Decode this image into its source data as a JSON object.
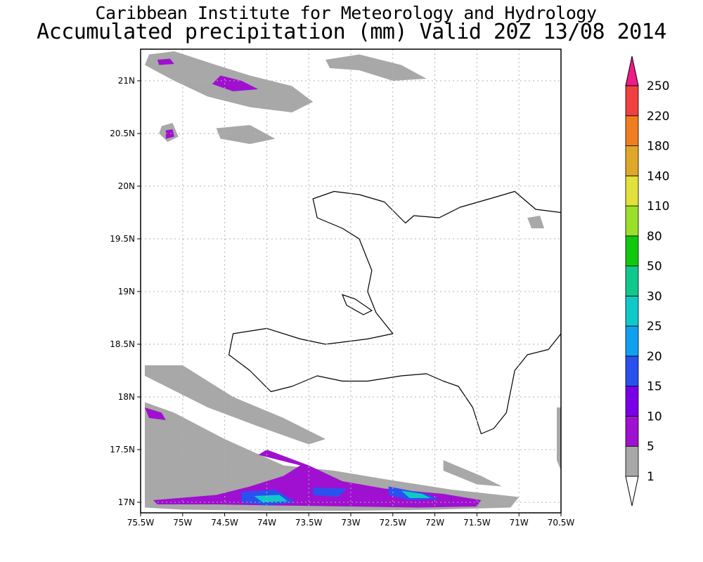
{
  "title_line1": "Caribbean Institute for Meteorology and Hydrology",
  "title_line2": "Accumulated precipitation (mm) Valid 20Z 13/08 2014",
  "map": {
    "lon_range": [
      -75.5,
      -70.5
    ],
    "lat_range": [
      16.9,
      21.3
    ],
    "grid": "dotted",
    "lon_ticks": [
      {
        "value": -75.5,
        "label": "75.5W"
      },
      {
        "value": -75,
        "label": "75W"
      },
      {
        "value": -74.5,
        "label": "74.5W"
      },
      {
        "value": -74,
        "label": "74W"
      },
      {
        "value": -73.5,
        "label": "73.5W"
      },
      {
        "value": -73,
        "label": "73W"
      },
      {
        "value": -72.5,
        "label": "72.5W"
      },
      {
        "value": -72,
        "label": "72W"
      },
      {
        "value": -71.5,
        "label": "71.5W"
      },
      {
        "value": -71,
        "label": "71W"
      },
      {
        "value": -70.5,
        "label": "70.5W"
      }
    ],
    "lat_ticks": [
      {
        "value": 17,
        "label": "17N"
      },
      {
        "value": 17.5,
        "label": "17.5N"
      },
      {
        "value": 18,
        "label": "18N"
      },
      {
        "value": 18.5,
        "label": "18.5N"
      },
      {
        "value": 19,
        "label": "19N"
      },
      {
        "value": 19.5,
        "label": "19.5N"
      },
      {
        "value": 20,
        "label": "20N"
      },
      {
        "value": 20.5,
        "label": "20.5N"
      },
      {
        "value": 21,
        "label": "21N"
      }
    ],
    "land_outline": [
      [
        -73.45,
        19.88
      ],
      [
        -73.2,
        19.95
      ],
      [
        -72.9,
        19.92
      ],
      [
        -72.6,
        19.85
      ],
      [
        -72.35,
        19.65
      ],
      [
        -72.25,
        19.72
      ],
      [
        -71.95,
        19.7
      ],
      [
        -71.7,
        19.8
      ],
      [
        -71.35,
        19.88
      ],
      [
        -71.05,
        19.95
      ],
      [
        -70.8,
        19.78
      ],
      [
        -70.5,
        19.75
      ],
      [
        -70.5,
        18.6
      ],
      [
        -70.65,
        18.45
      ],
      [
        -70.9,
        18.4
      ],
      [
        -71.05,
        18.25
      ],
      [
        -71.15,
        17.85
      ],
      [
        -71.3,
        17.7
      ],
      [
        -71.45,
        17.65
      ],
      [
        -71.55,
        17.9
      ],
      [
        -71.72,
        18.1
      ],
      [
        -71.9,
        18.15
      ],
      [
        -72.1,
        18.22
      ],
      [
        -72.4,
        18.2
      ],
      [
        -72.8,
        18.15
      ],
      [
        -73.1,
        18.15
      ],
      [
        -73.4,
        18.2
      ],
      [
        -73.7,
        18.1
      ],
      [
        -73.95,
        18.05
      ],
      [
        -74.2,
        18.25
      ],
      [
        -74.45,
        18.4
      ],
      [
        -74.4,
        18.6
      ],
      [
        -74.0,
        18.65
      ],
      [
        -73.6,
        18.55
      ],
      [
        -73.3,
        18.5
      ],
      [
        -72.8,
        18.55
      ],
      [
        -72.5,
        18.6
      ],
      [
        -72.7,
        18.8
      ],
      [
        -72.8,
        19.0
      ],
      [
        -72.75,
        19.2
      ],
      [
        -72.9,
        19.5
      ],
      [
        -73.1,
        19.6
      ],
      [
        -73.4,
        19.7
      ],
      [
        -73.45,
        19.88
      ]
    ],
    "gonave_outline": [
      [
        -73.1,
        18.97
      ],
      [
        -72.95,
        18.93
      ],
      [
        -72.75,
        18.82
      ],
      [
        -72.85,
        18.78
      ],
      [
        -73.05,
        18.87
      ],
      [
        -73.1,
        18.97
      ]
    ],
    "precip_areas": [
      {
        "band": "1",
        "pts": [
          [
            -75.4,
            21.25
          ],
          [
            -75.1,
            21.28
          ],
          [
            -74.6,
            21.15
          ],
          [
            -74.2,
            21.05
          ],
          [
            -73.7,
            20.95
          ],
          [
            -73.45,
            20.8
          ],
          [
            -73.7,
            20.7
          ],
          [
            -74.2,
            20.75
          ],
          [
            -74.7,
            20.85
          ],
          [
            -75.1,
            21.0
          ],
          [
            -75.45,
            21.15
          ]
        ]
      },
      {
        "band": "1",
        "pts": [
          [
            -73.3,
            21.2
          ],
          [
            -72.9,
            21.25
          ],
          [
            -72.4,
            21.15
          ],
          [
            -72.1,
            21.02
          ],
          [
            -72.5,
            21.0
          ],
          [
            -72.9,
            21.1
          ],
          [
            -73.25,
            21.12
          ]
        ]
      },
      {
        "band": "1",
        "pts": [
          [
            -75.25,
            20.57
          ],
          [
            -75.12,
            20.6
          ],
          [
            -75.05,
            20.47
          ],
          [
            -75.18,
            20.42
          ],
          [
            -75.28,
            20.5
          ]
        ]
      },
      {
        "band": "1",
        "pts": [
          [
            -74.6,
            20.55
          ],
          [
            -74.2,
            20.58
          ],
          [
            -73.9,
            20.45
          ],
          [
            -74.2,
            20.4
          ],
          [
            -74.55,
            20.45
          ]
        ]
      },
      {
        "band": "1",
        "pts": [
          [
            -70.9,
            19.7
          ],
          [
            -70.75,
            19.72
          ],
          [
            -70.7,
            19.6
          ],
          [
            -70.85,
            19.6
          ]
        ]
      },
      {
        "band": "1",
        "pts": [
          [
            -75.45,
            18.3
          ],
          [
            -75.0,
            18.3
          ],
          [
            -74.4,
            18.0
          ],
          [
            -73.8,
            17.8
          ],
          [
            -73.3,
            17.6
          ],
          [
            -73.5,
            17.55
          ],
          [
            -74.1,
            17.72
          ],
          [
            -74.7,
            17.9
          ],
          [
            -75.2,
            18.1
          ],
          [
            -75.45,
            18.2
          ]
        ]
      },
      {
        "band": "1",
        "pts": [
          [
            -75.45,
            17.95
          ],
          [
            -75.1,
            17.85
          ],
          [
            -74.5,
            17.6
          ],
          [
            -73.8,
            17.35
          ],
          [
            -73.2,
            17.3
          ],
          [
            -72.6,
            17.22
          ],
          [
            -71.8,
            17.12
          ],
          [
            -71.0,
            17.05
          ],
          [
            -71.1,
            16.95
          ],
          [
            -72.0,
            16.93
          ],
          [
            -73.0,
            16.92
          ],
          [
            -74.0,
            16.92
          ],
          [
            -75.0,
            16.93
          ],
          [
            -75.45,
            16.95
          ]
        ]
      },
      {
        "band": "1",
        "pts": [
          [
            -71.9,
            17.4
          ],
          [
            -71.45,
            17.25
          ],
          [
            -71.2,
            17.15
          ],
          [
            -71.5,
            17.17
          ],
          [
            -71.9,
            17.3
          ]
        ]
      },
      {
        "band": "1",
        "pts": [
          [
            -70.55,
            17.9
          ],
          [
            -70.5,
            17.9
          ],
          [
            -70.5,
            17.3
          ],
          [
            -70.55,
            17.4
          ]
        ]
      },
      {
        "band": "5",
        "pts": [
          [
            -74.55,
            21.05
          ],
          [
            -74.3,
            21.0
          ],
          [
            -74.1,
            20.92
          ],
          [
            -74.4,
            20.9
          ],
          [
            -74.65,
            20.97
          ]
        ]
      },
      {
        "band": "5",
        "pts": [
          [
            -75.2,
            20.53
          ],
          [
            -75.12,
            20.54
          ],
          [
            -75.1,
            20.47
          ],
          [
            -75.2,
            20.45
          ]
        ]
      },
      {
        "band": "5",
        "pts": [
          [
            -75.3,
            21.2
          ],
          [
            -75.15,
            21.21
          ],
          [
            -75.1,
            21.16
          ],
          [
            -75.28,
            21.15
          ]
        ]
      },
      {
        "band": "5",
        "pts": [
          [
            -75.45,
            17.9
          ],
          [
            -75.25,
            17.85
          ],
          [
            -75.2,
            17.78
          ],
          [
            -75.4,
            17.8
          ]
        ]
      },
      {
        "band": "5",
        "pts": [
          [
            -74.0,
            17.5
          ],
          [
            -73.5,
            17.35
          ],
          [
            -73.1,
            17.2
          ],
          [
            -72.6,
            17.13
          ],
          [
            -71.9,
            17.08
          ],
          [
            -71.45,
            17.02
          ],
          [
            -71.5,
            16.96
          ],
          [
            -72.2,
            16.95
          ],
          [
            -73.0,
            16.96
          ],
          [
            -73.9,
            16.97
          ],
          [
            -74.6,
            16.98
          ],
          [
            -75.3,
            16.98
          ],
          [
            -75.35,
            17.02
          ],
          [
            -74.6,
            17.07
          ],
          [
            -74.2,
            17.15
          ],
          [
            -73.8,
            17.25
          ],
          [
            -73.6,
            17.35
          ],
          [
            -74.1,
            17.45
          ]
        ]
      },
      {
        "band": "15",
        "pts": [
          [
            -74.3,
            17.1
          ],
          [
            -73.9,
            17.12
          ],
          [
            -73.65,
            17.0
          ],
          [
            -74.0,
            16.97
          ],
          [
            -74.3,
            17.0
          ]
        ]
      },
      {
        "band": "15",
        "pts": [
          [
            -73.45,
            17.14
          ],
          [
            -73.05,
            17.13
          ],
          [
            -73.15,
            17.05
          ],
          [
            -73.45,
            17.07
          ]
        ]
      },
      {
        "band": "15",
        "pts": [
          [
            -72.55,
            17.15
          ],
          [
            -72.1,
            17.08
          ],
          [
            -71.95,
            17.03
          ],
          [
            -72.3,
            17.02
          ],
          [
            -72.55,
            17.07
          ]
        ]
      },
      {
        "band": "25",
        "pts": [
          [
            -74.15,
            17.06
          ],
          [
            -73.85,
            17.07
          ],
          [
            -73.75,
            17.01
          ],
          [
            -74.05,
            17.0
          ]
        ]
      },
      {
        "band": "25",
        "pts": [
          [
            -72.4,
            17.11
          ],
          [
            -72.15,
            17.08
          ],
          [
            -72.05,
            17.04
          ],
          [
            -72.3,
            17.04
          ]
        ]
      }
    ]
  },
  "legend": {
    "thresholds": [
      "1",
      "5",
      "10",
      "15",
      "20",
      "25",
      "30",
      "50",
      "80",
      "110",
      "140",
      "180",
      "220",
      "250"
    ],
    "colors": [
      "#ffffff",
      "#a8a8a8",
      "#a010d0",
      "#7a00e8",
      "#2a50f0",
      "#10a0f0",
      "#10c8c8",
      "#10c88c",
      "#10c810",
      "#9ae02a",
      "#e2e03a",
      "#e0a82a",
      "#f07e20",
      "#f04040",
      "#f01c8a"
    ]
  }
}
